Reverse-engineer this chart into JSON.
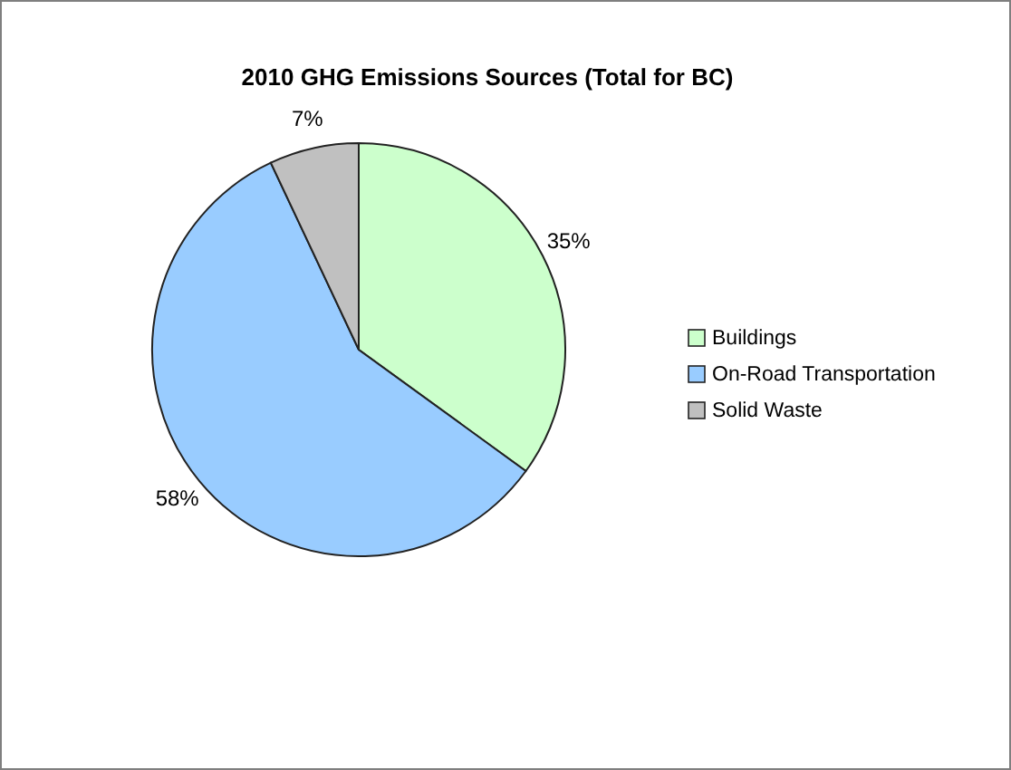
{
  "chart_data": {
    "type": "pie",
    "title": "2010 GHG Emissions Sources (Total for BC)",
    "categories": [
      "Buildings",
      "On-Road Transportation",
      "Solid Waste"
    ],
    "values": [
      35,
      58,
      7
    ],
    "colors": [
      "#ccffcc",
      "#99ccff",
      "#c0c0c0"
    ],
    "value_labels": [
      "35%",
      "58%",
      "7%"
    ],
    "legend": "right"
  }
}
